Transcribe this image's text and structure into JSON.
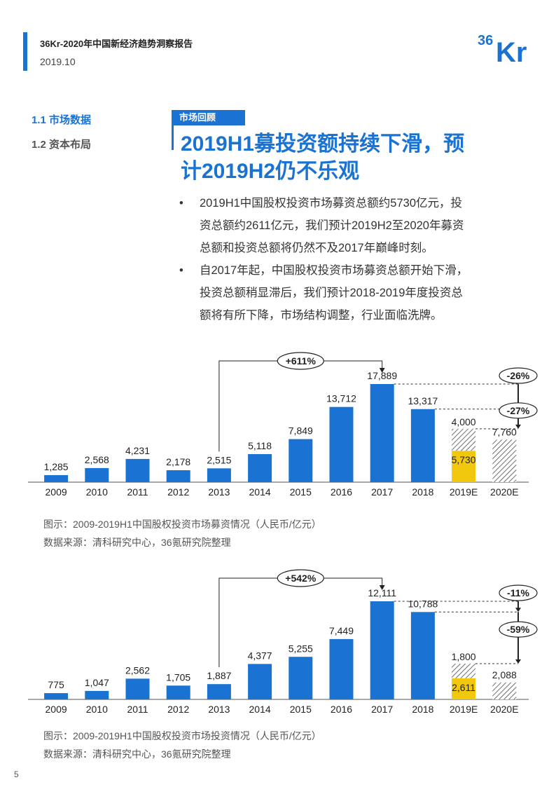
{
  "header": {
    "report_title": "36Kr-2020年中国新经济趋势洞察报告",
    "date": "2019.10",
    "logo_text": "36Kr",
    "accent_color": "#1a73d2"
  },
  "nav": {
    "items": [
      {
        "label": "1.1 市场数据",
        "active": true
      },
      {
        "label": "1.2 资本布局",
        "active": false
      }
    ]
  },
  "section": {
    "tag": "市场回顾",
    "title_line1": "2019H1募投资额持续下滑，预",
    "title_line2": "计2019H2仍不乐观"
  },
  "bullets": [
    {
      "dot": "•",
      "lines": [
        "2019H1中国股权投资市场募资总额约5730亿元，投",
        "资总额约2611亿元，我们预计2019H2至2020年募资",
        "总额和投资总额将仍然不及2017年巅峰时刻。"
      ]
    },
    {
      "dot": "•",
      "lines": [
        "自2017年起，中国股权投资市场募资总额开始下滑，",
        "投资总额稍显滞后，我们预计2018-2019年度投资总",
        "额将有所下降，市场结构调整，行业面临洗牌。"
      ]
    }
  ],
  "chart_data": [
    {
      "type": "bar",
      "categories": [
        "2009",
        "2010",
        "2011",
        "2012",
        "2013",
        "2014",
        "2015",
        "2016",
        "2017",
        "2018",
        "2019E",
        "2020E"
      ],
      "values": [
        1285,
        2568,
        4231,
        2178,
        2515,
        5118,
        7849,
        13712,
        17889,
        13317,
        null,
        null
      ],
      "labels": [
        "1,285",
        "2,568",
        "4,231",
        "2,178",
        "2,515",
        "5,118",
        "7,849",
        "13,712",
        "17,889",
        "13,317"
      ],
      "estimate_2019": {
        "h1_value": 5730,
        "h1_label": "5,730",
        "h2_value": 4000,
        "h2_label": "4,000"
      },
      "estimate_2020": {
        "value": 7760,
        "label": "7,760"
      },
      "growth_annotation": {
        "from": "2013",
        "to": "2017",
        "label": "+611%"
      },
      "change_labels": [
        "-26%",
        "-27%"
      ],
      "ymax": 17889,
      "colors": {
        "bar": "#1a73d2",
        "h1": "#f2c80f"
      }
    },
    {
      "type": "bar",
      "categories": [
        "2009",
        "2010",
        "2011",
        "2012",
        "2013",
        "2014",
        "2015",
        "2016",
        "2017",
        "2018",
        "2019E",
        "2020E"
      ],
      "values": [
        775,
        1047,
        2562,
        1705,
        1887,
        4377,
        5255,
        7449,
        12111,
        10788,
        null,
        null
      ],
      "labels": [
        "775",
        "1,047",
        "2,562",
        "1,705",
        "1,887",
        "4,377",
        "5,255",
        "7,449",
        "12,111",
        "10,788"
      ],
      "estimate_2019": {
        "h1_value": 2611,
        "h1_label": "2,611",
        "h2_value": 1800,
        "h2_label": "1,800"
      },
      "estimate_2020": {
        "value": 2088,
        "label": "2,088"
      },
      "growth_annotation": {
        "from": "2013",
        "to": "2017",
        "label": "+542%"
      },
      "change_labels": [
        "-11%",
        "-59%"
      ],
      "ymax": 12111,
      "colors": {
        "bar": "#1a73d2",
        "h1": "#f2c80f"
      }
    }
  ],
  "captions": [
    {
      "title": "图示：2009-2019H1中国股权投资市场募资情况（人民币/亿元）",
      "source": "数据来源：清科研究中心，36氪研究院整理"
    },
    {
      "title": "图示：2009-2019H1中国股权投资市场投资情况（人民币/亿元）",
      "source": "数据来源：清科研究中心，36氪研究院整理"
    }
  ],
  "page_number": "5"
}
